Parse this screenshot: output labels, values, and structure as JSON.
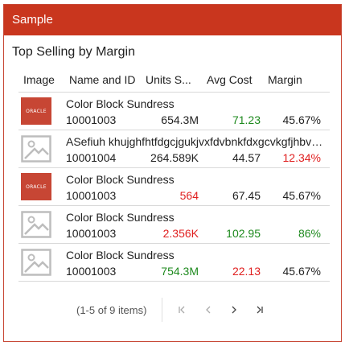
{
  "header": {
    "title": "Sample"
  },
  "card": {
    "title": "Top Selling by Margin"
  },
  "table": {
    "columns": [
      "Image",
      "Name and ID",
      "Units S...",
      "Avg Cost",
      "Margin"
    ],
    "rows": [
      {
        "image": "oracle-logo",
        "logo_text": "ORACLE",
        "name": "Color Block Sundress",
        "id": "10001003",
        "units": "654.3M",
        "units_color": "default",
        "cost": "71.23",
        "cost_color": "green",
        "margin": "45.67%",
        "margin_color": "default"
      },
      {
        "image": "placeholder-image",
        "logo_text": "",
        "name": "ASefiuh khujghfhtfdgcjgukjvxfdvbnkfdxgcvkgfjhbvcxdfghjkl",
        "id": "10001004",
        "units": "264.589K",
        "units_color": "default",
        "cost": "44.57",
        "cost_color": "default",
        "margin": "12.34%",
        "margin_color": "red"
      },
      {
        "image": "oracle-logo",
        "logo_text": "ORACLE",
        "name": "Color Block Sundress",
        "id": "10001003",
        "units": "564",
        "units_color": "red",
        "cost": "67.45",
        "cost_color": "default",
        "margin": "45.67%",
        "margin_color": "default"
      },
      {
        "image": "placeholder-image",
        "logo_text": "",
        "name": "Color Block Sundress",
        "id": "10001003",
        "units": "2.356K",
        "units_color": "red",
        "cost": "102.95",
        "cost_color": "green",
        "margin": "86%",
        "margin_color": "green"
      },
      {
        "image": "placeholder-image",
        "logo_text": "",
        "name": "Color Block Sundress",
        "id": "10001003",
        "units": "754.3M",
        "units_color": "green",
        "cost": "22.13",
        "cost_color": "red",
        "margin": "45.67%",
        "margin_color": "default"
      }
    ]
  },
  "pager": {
    "info": "(1-5 of 9 items)",
    "buttons": [
      "first-page-icon",
      "previous-page-icon",
      "next-page-icon",
      "last-page-icon"
    ]
  },
  "colors": {
    "header_bg": "#c9361e",
    "border": "#c74634",
    "red": "#e02020",
    "green": "#1e8a1e"
  }
}
